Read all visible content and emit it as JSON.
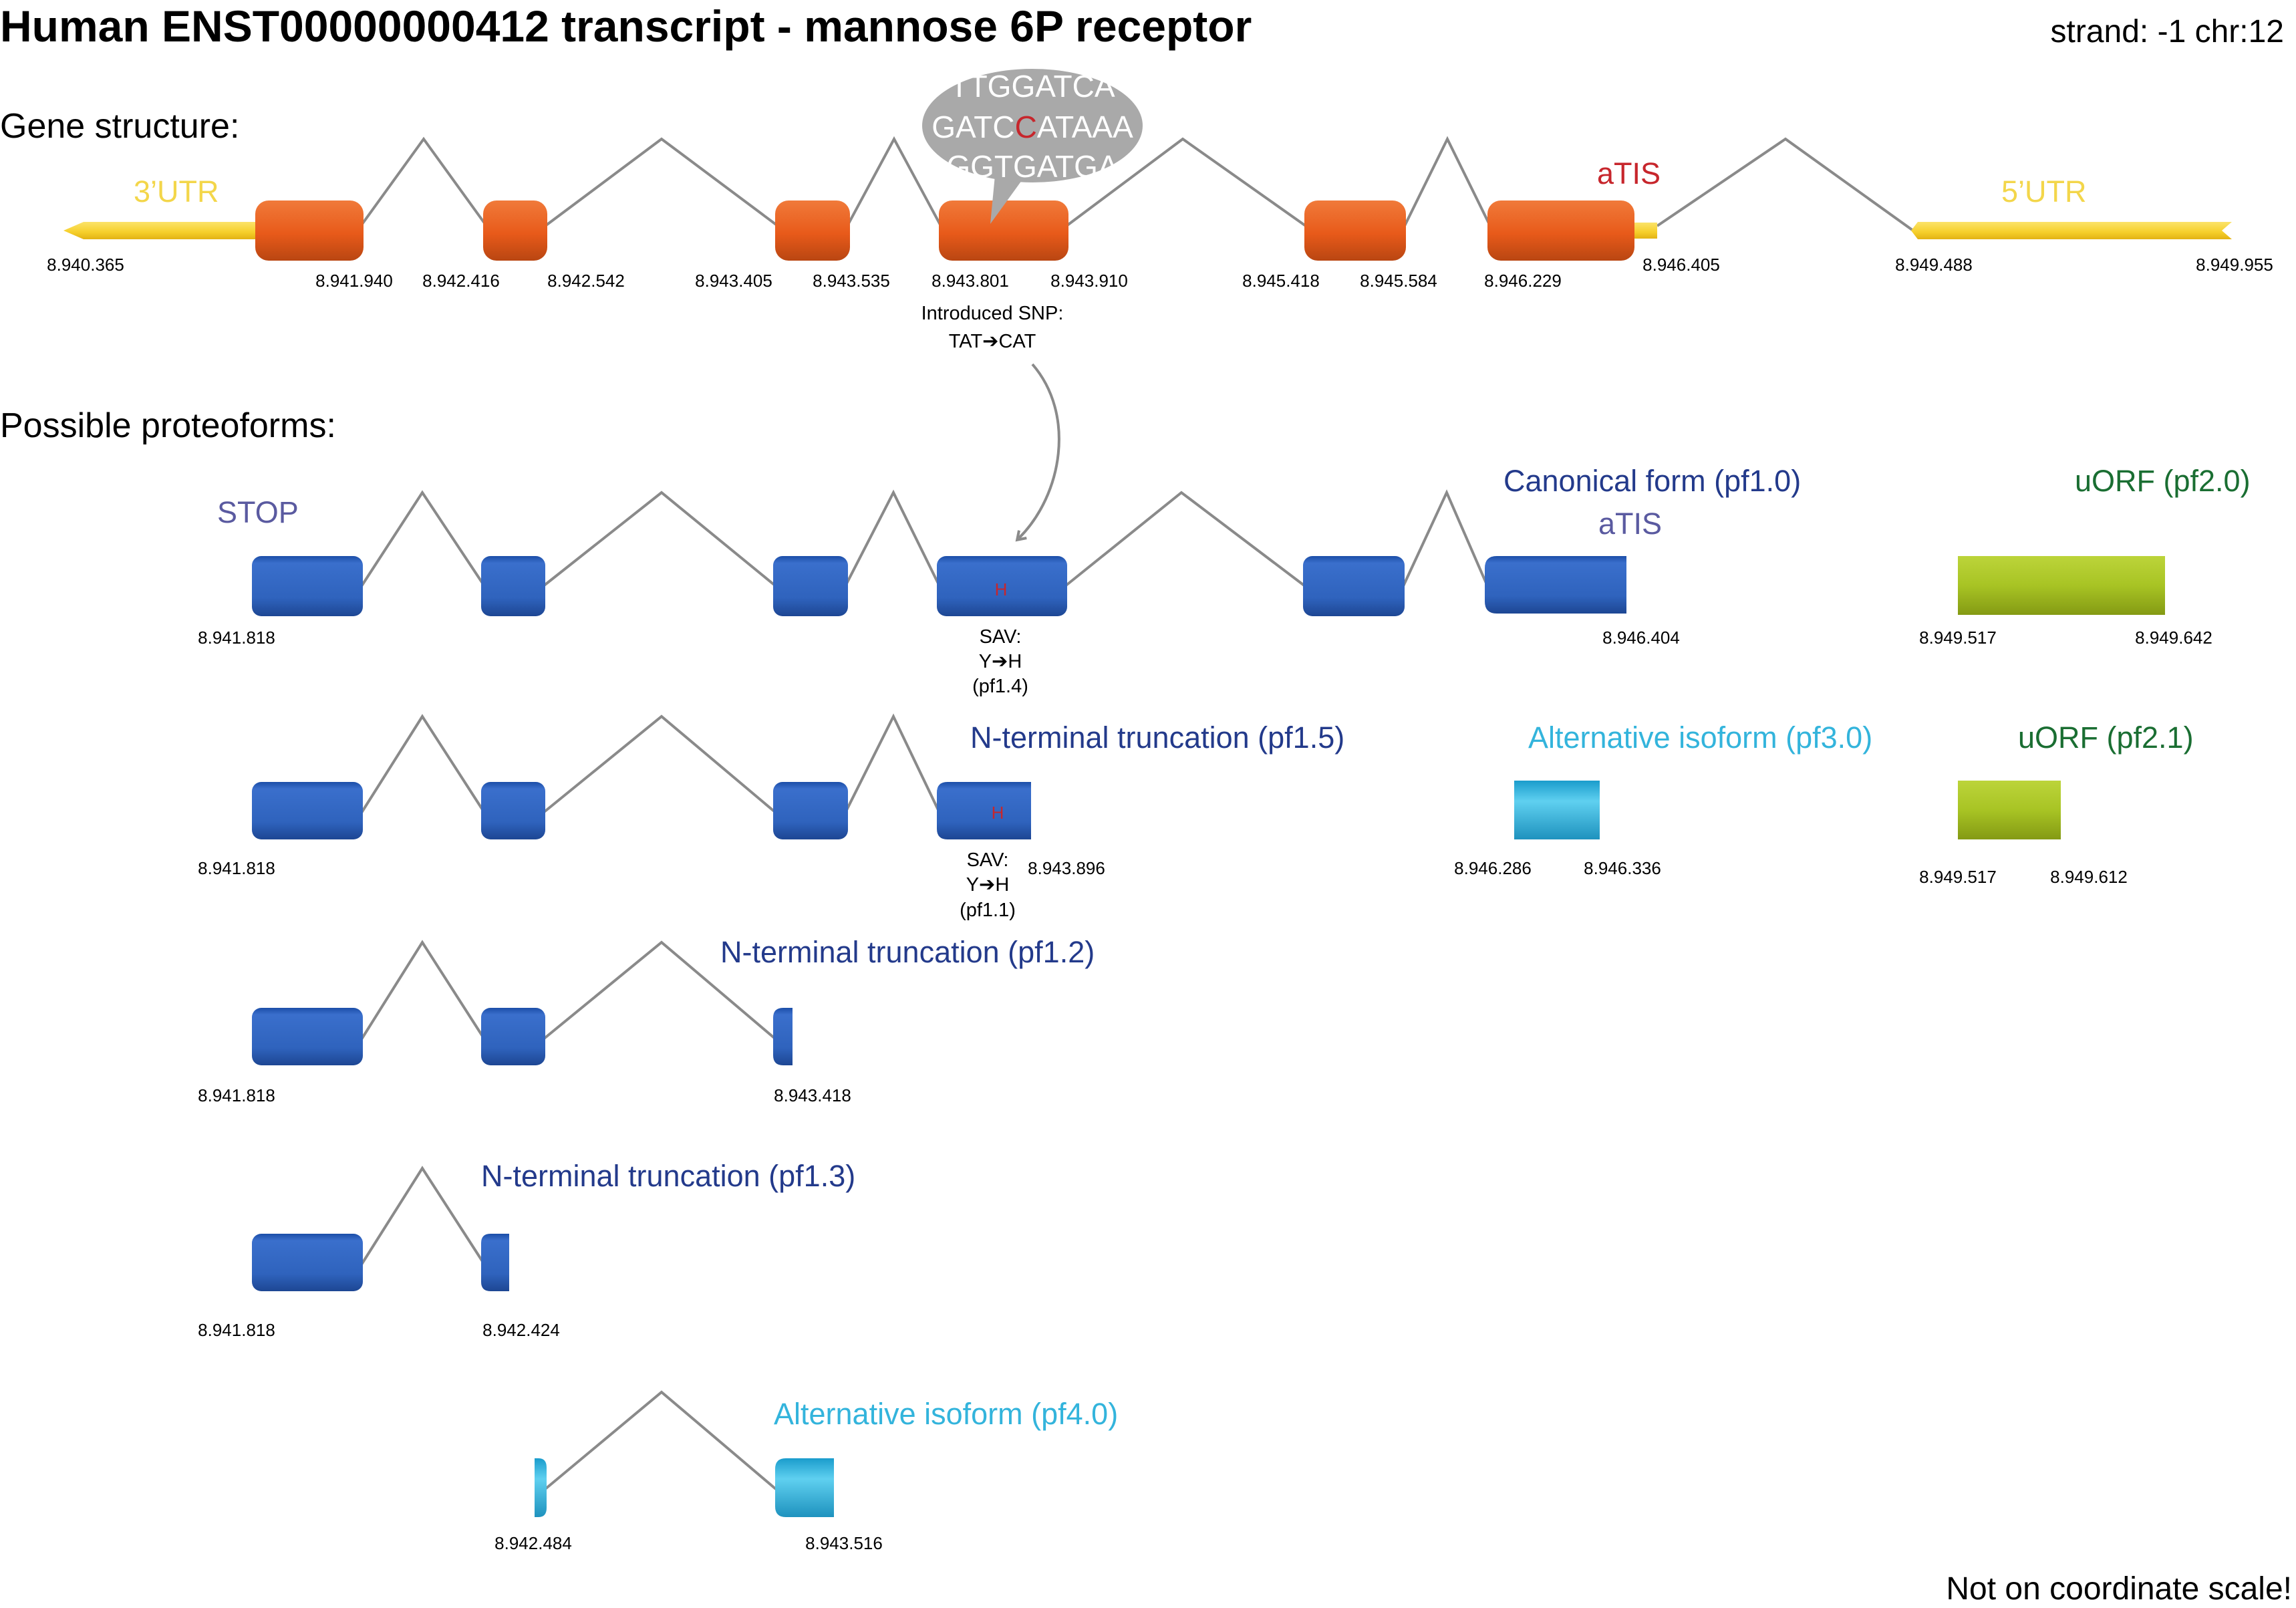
{
  "title": "Human ENST00000000412 transcript - mannose 6P receptor",
  "strand_chr": "strand: -1  chr:12",
  "section_gene": "Gene structure:",
  "section_proteoforms": "Possible proteoforms:",
  "footer_note": "Not on coordinate scale!",
  "colors": {
    "exon_orange": "#e8601c",
    "utr_yellow": "#f6d23c",
    "utr_label": "#f3d64a",
    "proteoform_blue": "#2f63bd",
    "alt_isoform_cyan": "#33b4dc",
    "uorf_green": "#a8c424",
    "label_navy": "#233a8b",
    "label_slate": "#5a5aa0",
    "label_green": "#1a6e32",
    "label_red": "#c7262c",
    "intron_grey": "#8a8a8a"
  },
  "gene": {
    "label_3utr": "3’UTR",
    "label_5utr": "5’UTR",
    "label_atis": "aTIS",
    "coords": [
      "8.940.365",
      "8.941.940",
      "8.942.416",
      "8.942.542",
      "8.943.405",
      "8.943.535",
      "8.943.801",
      "8.943.910",
      "8.945.418",
      "8.945.584",
      "8.946.229",
      "8.946.405",
      "8.949.488",
      "8.949.955"
    ],
    "snp_note_line1": "Introduced SNP:",
    "snp_note_line2": "TAT➔CAT",
    "bubble_line1": "TTGGATCA",
    "bubble_line2_a": "GATC",
    "bubble_line2_b": "C",
    "bubble_line2_c": "ATAAA",
    "bubble_line3": "GGTGATGA"
  },
  "proteoforms": {
    "canonical": {
      "label": "Canonical form (pf1.0)",
      "stop": "STOP",
      "atis": "aTIS",
      "mark": "H",
      "coord_start": "8.941.818",
      "coord_end": "8.946.404",
      "sav_line1": "SAV:",
      "sav_line2": "Y➔H",
      "sav_line3": "(pf1.4)"
    },
    "uorf20": {
      "label": "uORF (pf2.0)",
      "coord_start": "8.949.517",
      "coord_end": "8.949.642"
    },
    "pf15": {
      "label": "N-terminal truncation (pf1.5)",
      "mark": "H",
      "coord_start": "8.941.818",
      "coord_end": "8.943.896",
      "sav_line1": "SAV:",
      "sav_line2": "Y➔H",
      "sav_line3": "(pf1.1)"
    },
    "pf30": {
      "label": "Alternative isoform (pf3.0)",
      "coord_start": "8.946.286",
      "coord_end": "8.946.336"
    },
    "uorf21": {
      "label": "uORF (pf2.1)",
      "coord_start": "8.949.517",
      "coord_end": "8.949.612"
    },
    "pf12": {
      "label": "N-terminal truncation (pf1.2)",
      "coord_start": "8.941.818",
      "coord_end": "8.943.418"
    },
    "pf13": {
      "label": "N-terminal truncation (pf1.3)",
      "coord_start": "8.941.818",
      "coord_end": "8.942.424"
    },
    "pf40": {
      "label": "Alternative isoform (pf4.0)",
      "coord_start": "8.942.484",
      "coord_end": "8.943.516"
    }
  }
}
